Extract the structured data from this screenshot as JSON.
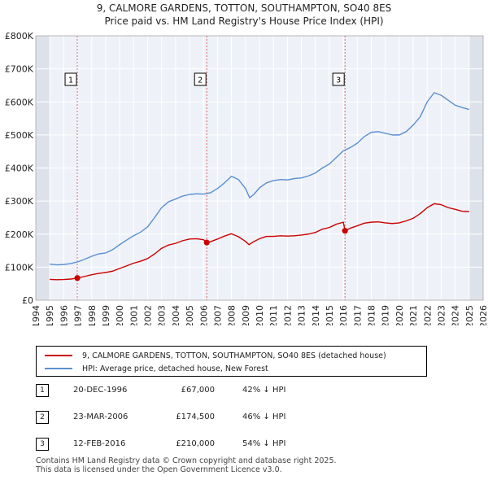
{
  "title_line1": "9, CALMORE GARDENS, TOTTON, SOUTHAMPTON, SO40 8ES",
  "title_line2": "Price paid vs. HM Land Registry's House Price Index (HPI)",
  "chart_data": {
    "type": "line",
    "title": "9, CALMORE GARDENS, TOTTON, SOUTHAMPTON, SO40 8ES — Price paid vs. HM Land Registry's House Price Index (HPI)",
    "xlim": [
      1994,
      2026
    ],
    "ylim": [
      0,
      800000
    ],
    "x_ticks": [
      "1994",
      "1995",
      "1996",
      "1997",
      "1998",
      "1999",
      "2000",
      "2001",
      "2002",
      "2003",
      "2004",
      "2005",
      "2006",
      "2007",
      "2008",
      "2009",
      "2010",
      "2011",
      "2012",
      "2013",
      "2014",
      "2015",
      "2016",
      "2017",
      "2018",
      "2019",
      "2020",
      "2021",
      "2022",
      "2023",
      "2024",
      "2025",
      "2026"
    ],
    "y_ticks": [
      {
        "value": 0,
        "label": "£0"
      },
      {
        "value": 100000,
        "label": "£100K"
      },
      {
        "value": 200000,
        "label": "£200K"
      },
      {
        "value": 300000,
        "label": "£300K"
      },
      {
        "value": 400000,
        "label": "£400K"
      },
      {
        "value": 500000,
        "label": "£500K"
      },
      {
        "value": 600000,
        "label": "£600K"
      },
      {
        "value": 700000,
        "label": "£700K"
      },
      {
        "value": 800000,
        "label": "£800K"
      }
    ],
    "grid": true,
    "shaded_x_ranges": [
      [
        1994.0,
        1995.0
      ],
      [
        2025.0,
        2026.0
      ]
    ],
    "series": [
      {
        "name": "9, CALMORE GARDENS, TOTTON, SOUTHAMPTON, SO40 8ES (detached house)",
        "color": "#cc0000",
        "points": [
          [
            1995.0,
            63000
          ],
          [
            1995.5,
            62000
          ],
          [
            1996.0,
            62500
          ],
          [
            1996.5,
            64000
          ],
          [
            1996.97,
            67000
          ],
          [
            1997.5,
            72000
          ],
          [
            1998.0,
            77000
          ],
          [
            1998.5,
            81000
          ],
          [
            1999.0,
            84000
          ],
          [
            1999.5,
            88000
          ],
          [
            2000.0,
            96000
          ],
          [
            2000.5,
            104000
          ],
          [
            2001.0,
            112000
          ],
          [
            2001.5,
            118000
          ],
          [
            2002.0,
            126000
          ],
          [
            2002.5,
            140000
          ],
          [
            2003.0,
            157000
          ],
          [
            2003.5,
            167000
          ],
          [
            2004.0,
            172000
          ],
          [
            2004.5,
            180000
          ],
          [
            2005.0,
            185000
          ],
          [
            2005.5,
            186000
          ],
          [
            2006.0,
            183000
          ],
          [
            2006.23,
            174500
          ],
          [
            2006.5,
            177000
          ],
          [
            2007.0,
            185000
          ],
          [
            2007.5,
            194000
          ],
          [
            2008.0,
            201000
          ],
          [
            2008.5,
            192000
          ],
          [
            2009.0,
            178000
          ],
          [
            2009.25,
            168000
          ],
          [
            2009.5,
            175000
          ],
          [
            2010.0,
            186000
          ],
          [
            2010.5,
            193000
          ],
          [
            2011.0,
            193000
          ],
          [
            2011.5,
            195000
          ],
          [
            2012.0,
            194000
          ],
          [
            2012.5,
            195000
          ],
          [
            2013.0,
            197000
          ],
          [
            2013.5,
            200000
          ],
          [
            2014.0,
            205000
          ],
          [
            2014.5,
            215000
          ],
          [
            2015.0,
            220000
          ],
          [
            2015.5,
            230000
          ],
          [
            2016.0,
            236000
          ],
          [
            2016.12,
            210000
          ],
          [
            2016.5,
            218000
          ],
          [
            2017.0,
            225000
          ],
          [
            2017.5,
            233000
          ],
          [
            2018.0,
            236000
          ],
          [
            2018.5,
            237000
          ],
          [
            2019.0,
            234000
          ],
          [
            2019.5,
            232000
          ],
          [
            2020.0,
            234000
          ],
          [
            2020.5,
            240000
          ],
          [
            2021.0,
            248000
          ],
          [
            2021.5,
            262000
          ],
          [
            2022.0,
            280000
          ],
          [
            2022.5,
            292000
          ],
          [
            2023.0,
            289000
          ],
          [
            2023.5,
            280000
          ],
          [
            2024.0,
            275000
          ],
          [
            2024.5,
            269000
          ],
          [
            2025.0,
            268000
          ]
        ]
      },
      {
        "name": "HPI: Average price, detached house, New Forest",
        "color": "#5b8fd0",
        "points": [
          [
            1995.0,
            109000
          ],
          [
            1995.5,
            107000
          ],
          [
            1996.0,
            108000
          ],
          [
            1996.5,
            111000
          ],
          [
            1997.0,
            116000
          ],
          [
            1997.5,
            124000
          ],
          [
            1998.0,
            133000
          ],
          [
            1998.5,
            140000
          ],
          [
            1999.0,
            143000
          ],
          [
            1999.5,
            153000
          ],
          [
            2000.0,
            168000
          ],
          [
            2000.5,
            182000
          ],
          [
            2001.0,
            195000
          ],
          [
            2001.5,
            206000
          ],
          [
            2002.0,
            222000
          ],
          [
            2002.5,
            250000
          ],
          [
            2003.0,
            280000
          ],
          [
            2003.5,
            298000
          ],
          [
            2004.0,
            306000
          ],
          [
            2004.5,
            315000
          ],
          [
            2005.0,
            320000
          ],
          [
            2005.5,
            322000
          ],
          [
            2006.0,
            321000
          ],
          [
            2006.5,
            325000
          ],
          [
            2007.0,
            338000
          ],
          [
            2007.5,
            355000
          ],
          [
            2008.0,
            375000
          ],
          [
            2008.5,
            365000
          ],
          [
            2009.0,
            338000
          ],
          [
            2009.3,
            310000
          ],
          [
            2009.6,
            320000
          ],
          [
            2010.0,
            340000
          ],
          [
            2010.5,
            355000
          ],
          [
            2011.0,
            362000
          ],
          [
            2011.5,
            365000
          ],
          [
            2012.0,
            364000
          ],
          [
            2012.5,
            368000
          ],
          [
            2013.0,
            370000
          ],
          [
            2013.5,
            376000
          ],
          [
            2014.0,
            385000
          ],
          [
            2014.5,
            400000
          ],
          [
            2015.0,
            412000
          ],
          [
            2015.5,
            432000
          ],
          [
            2016.0,
            452000
          ],
          [
            2016.5,
            462000
          ],
          [
            2017.0,
            475000
          ],
          [
            2017.5,
            495000
          ],
          [
            2018.0,
            508000
          ],
          [
            2018.5,
            510000
          ],
          [
            2019.0,
            505000
          ],
          [
            2019.5,
            500000
          ],
          [
            2020.0,
            500000
          ],
          [
            2020.5,
            510000
          ],
          [
            2021.0,
            530000
          ],
          [
            2021.5,
            555000
          ],
          [
            2022.0,
            600000
          ],
          [
            2022.5,
            628000
          ],
          [
            2023.0,
            620000
          ],
          [
            2023.5,
            605000
          ],
          [
            2024.0,
            590000
          ],
          [
            2024.5,
            583000
          ],
          [
            2025.0,
            577000
          ]
        ]
      }
    ],
    "sales": [
      {
        "id": "1",
        "x": 1996.97,
        "price": 67000
      },
      {
        "id": "2",
        "x": 2006.23,
        "price": 174500
      },
      {
        "id": "3",
        "x": 2016.12,
        "price": 210000
      }
    ]
  },
  "legend": {
    "property_label": "9, CALMORE GARDENS, TOTTON, SOUTHAMPTON, SO40 8ES (detached house)",
    "hpi_label": "HPI: Average price, detached house, New Forest"
  },
  "sales_table": [
    {
      "num": "1",
      "date": "20-DEC-1996",
      "price": "£67,000",
      "hpi": "42% ↓ HPI"
    },
    {
      "num": "2",
      "date": "23-MAR-2006",
      "price": "£174,500",
      "hpi": "46% ↓ HPI"
    },
    {
      "num": "3",
      "date": "12-FEB-2016",
      "price": "£210,000",
      "hpi": "54% ↓ HPI"
    }
  ],
  "footer": {
    "line1": "Contains HM Land Registry data © Crown copyright and database right 2025.",
    "line2": "This data is licensed under the Open Government Licence v3.0."
  },
  "colors": {
    "property": "#cc0000",
    "hpi": "#5b8fd0",
    "plot_bg": "#eef2f8",
    "shade": "#dde2ea",
    "sale_line": "#e06060"
  }
}
